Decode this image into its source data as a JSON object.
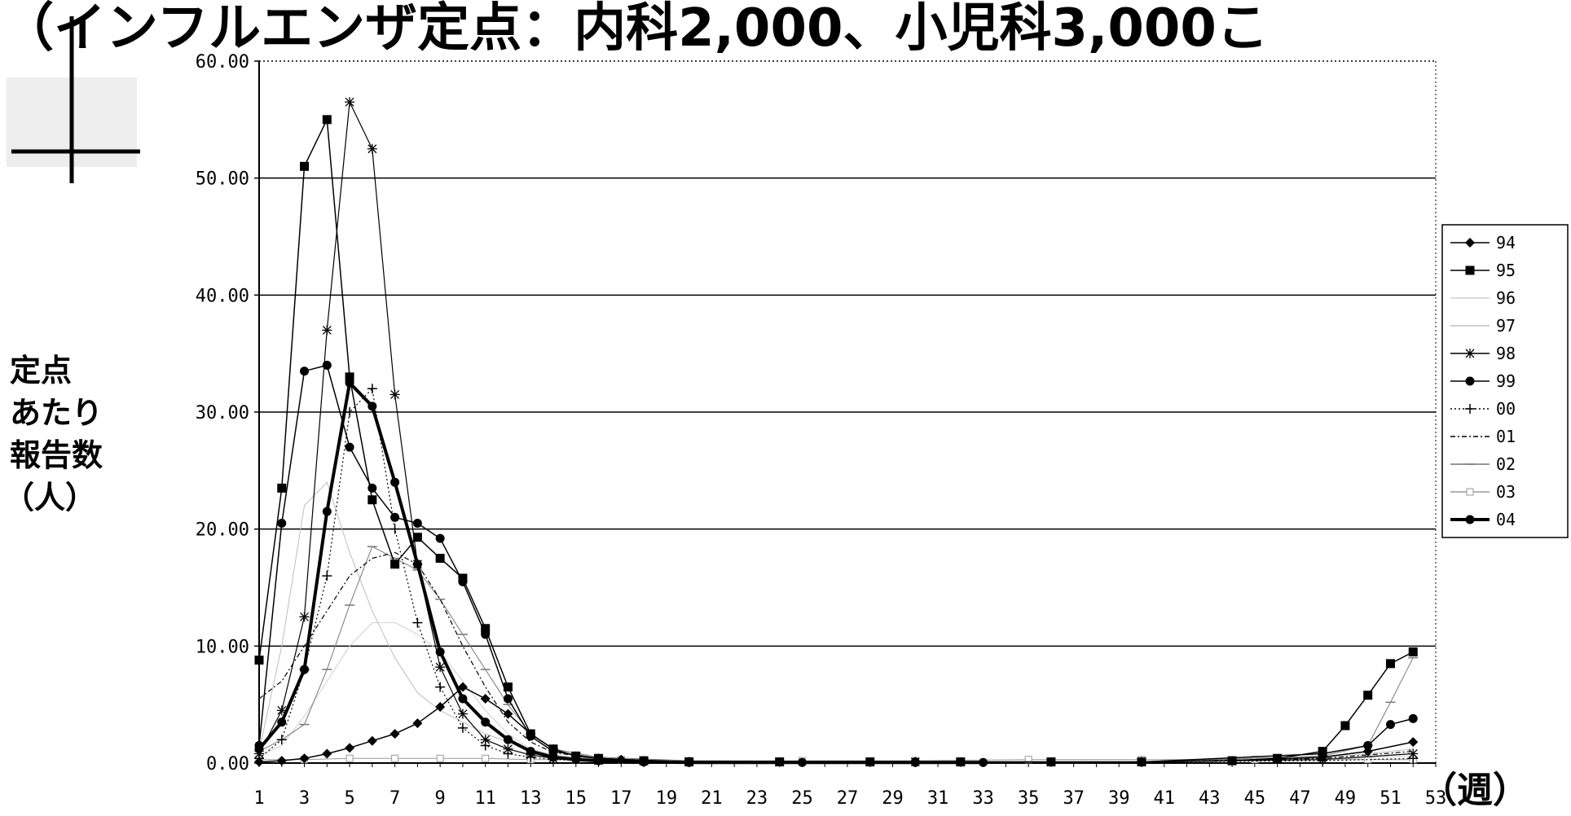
{
  "chart_data": {
    "type": "line",
    "title": "（インフルエンザ定点：内科2,000、小児科3,000こ",
    "ylabel": [
      "定点",
      "あたり",
      "報告数",
      "（人）"
    ],
    "xlabel": "（週）",
    "ylim": [
      0,
      60
    ],
    "yticks": [
      "0.00",
      "10.00",
      "20.00",
      "30.00",
      "40.00",
      "50.00",
      "60.00"
    ],
    "xlim": [
      1,
      53
    ],
    "xticks": [
      "1",
      "3",
      "5",
      "7",
      "9",
      "11",
      "13",
      "15",
      "17",
      "19",
      "21",
      "23",
      "25",
      "27",
      "29",
      "31",
      "33",
      "35",
      "37",
      "39",
      "41",
      "43",
      "45",
      "47",
      "49",
      "51",
      "53"
    ],
    "grid": true,
    "legend_position": "right",
    "series": [
      {
        "name": "94",
        "x": [
          1,
          2,
          3,
          4,
          5,
          6,
          7,
          8,
          9,
          10,
          11,
          12,
          13,
          14,
          15,
          16,
          17,
          18,
          20,
          24,
          28,
          32,
          36,
          40,
          44,
          48,
          50,
          52
        ],
        "values": [
          0.1,
          0.2,
          0.4,
          0.8,
          1.3,
          1.9,
          2.5,
          3.4,
          4.8,
          6.5,
          5.5,
          4.2,
          2.5,
          1.2,
          0.6,
          0.4,
          0.3,
          0.2,
          0.1,
          0.1,
          0.1,
          0.1,
          0.1,
          0.1,
          0.2,
          0.5,
          1.0,
          1.8
        ]
      },
      {
        "name": "95",
        "x": [
          1,
          2,
          3,
          4,
          5,
          6,
          7,
          8,
          9,
          10,
          11,
          12,
          13,
          14,
          15,
          16,
          18,
          20,
          24,
          28,
          32,
          36,
          40,
          44,
          46,
          48,
          49,
          50,
          51,
          52
        ],
        "values": [
          8.8,
          23.5,
          51,
          55,
          33,
          22.5,
          17,
          19.3,
          17.5,
          15.8,
          11.5,
          6.5,
          2.5,
          1.2,
          0.6,
          0.4,
          0.2,
          0.1,
          0.1,
          0.1,
          0.1,
          0.1,
          0.1,
          0.2,
          0.4,
          1.0,
          3.2,
          5.8,
          8.5,
          9.5
        ]
      },
      {
        "name": "96",
        "x": [
          1,
          2,
          3,
          4,
          5,
          6,
          7,
          8,
          9,
          10,
          11,
          12,
          13,
          14,
          16,
          20,
          30,
          40,
          48,
          52
        ],
        "values": [
          0.6,
          1.5,
          4,
          7,
          10,
          12,
          12,
          11,
          9.5,
          7,
          4.5,
          2.5,
          1.2,
          0.6,
          0.3,
          0.1,
          0.1,
          0.1,
          0.3,
          0.6
        ]
      },
      {
        "name": "97",
        "x": [
          1,
          2,
          3,
          4,
          5,
          6,
          7,
          8,
          9,
          10,
          11,
          12,
          13,
          14,
          16,
          20,
          30,
          40,
          48,
          52
        ],
        "values": [
          1.0,
          10,
          22,
          24,
          18,
          13,
          9,
          6,
          4.5,
          3.5,
          2.5,
          1.8,
          1.2,
          0.7,
          0.3,
          0.1,
          0.1,
          0.1,
          0.4,
          1.2
        ]
      },
      {
        "name": "98",
        "x": [
          1,
          2,
          3,
          4,
          5,
          6,
          7,
          8,
          9,
          10,
          11,
          12,
          13,
          14,
          16,
          20,
          30,
          40,
          48,
          52
        ],
        "values": [
          0.8,
          4.5,
          12.5,
          37,
          56.5,
          52.5,
          31.5,
          17,
          8.2,
          4.2,
          2.0,
          1.2,
          0.7,
          0.4,
          0.2,
          0.1,
          0.1,
          0.1,
          0.3,
          0.8
        ]
      },
      {
        "name": "99",
        "x": [
          1,
          2,
          3,
          4,
          5,
          6,
          7,
          8,
          9,
          10,
          11,
          12,
          13,
          14,
          16,
          20,
          30,
          40,
          48,
          50,
          51,
          52
        ],
        "values": [
          1.5,
          20.5,
          33.5,
          34,
          27,
          23.5,
          21,
          20.5,
          19.2,
          15.5,
          11,
          5.5,
          2.3,
          1.0,
          0.4,
          0.1,
          0.1,
          0.1,
          0.8,
          1.5,
          3.3,
          3.8
        ]
      },
      {
        "name": "00",
        "x": [
          1,
          2,
          3,
          4,
          5,
          6,
          7,
          8,
          9,
          10,
          11,
          12,
          13,
          14,
          16,
          20,
          30,
          40,
          48,
          52
        ],
        "values": [
          0.4,
          2.0,
          8,
          16,
          30,
          32,
          20,
          12,
          6.5,
          3.0,
          1.5,
          0.8,
          0.5,
          0.3,
          0.2,
          0.1,
          0.1,
          0.1,
          0.2,
          0.4
        ]
      },
      {
        "name": "01",
        "x": [
          1,
          2,
          3,
          4,
          5,
          6,
          7,
          8,
          9,
          10,
          11,
          12,
          13,
          14,
          16,
          20,
          30,
          40,
          48,
          52
        ],
        "values": [
          5.5,
          7,
          10,
          13,
          16,
          17.5,
          18,
          17,
          14,
          10,
          6.5,
          3.5,
          1.8,
          0.9,
          0.4,
          0.1,
          0.1,
          0.1,
          0.4,
          1.0
        ]
      },
      {
        "name": "02",
        "x": [
          1,
          2,
          3,
          4,
          5,
          6,
          7,
          8,
          9,
          10,
          11,
          12,
          13,
          14,
          16,
          20,
          30,
          40,
          48,
          50,
          51,
          52
        ],
        "values": [
          1.0,
          2.0,
          3.3,
          8,
          13.5,
          18.5,
          17.5,
          16.5,
          14,
          11,
          8,
          5,
          2.5,
          1.2,
          0.5,
          0.2,
          0.1,
          0.1,
          0.6,
          1.5,
          5.2,
          9.0
        ]
      },
      {
        "name": "03",
        "x": [
          1,
          3,
          5,
          7,
          9,
          11,
          13,
          15,
          17,
          20,
          25,
          30,
          35,
          40,
          45,
          50,
          52
        ],
        "values": [
          0.3,
          0.3,
          0.4,
          0.4,
          0.4,
          0.4,
          0.3,
          0.3,
          0.3,
          0.2,
          0.2,
          0.2,
          0.3,
          0.3,
          0.3,
          0.3,
          0.3
        ]
      },
      {
        "name": "04",
        "x": [
          1,
          2,
          3,
          4,
          5,
          6,
          7,
          8,
          9,
          10,
          11,
          12,
          13,
          14,
          15,
          16,
          18,
          20,
          25,
          30,
          33
        ],
        "values": [
          1.2,
          3.5,
          8,
          21.5,
          32.5,
          30.5,
          24,
          17,
          9.5,
          5.5,
          3.5,
          2.0,
          1.0,
          0.5,
          0.3,
          0.2,
          0.1,
          0.05,
          0.05,
          0.05,
          0.05
        ]
      }
    ]
  }
}
